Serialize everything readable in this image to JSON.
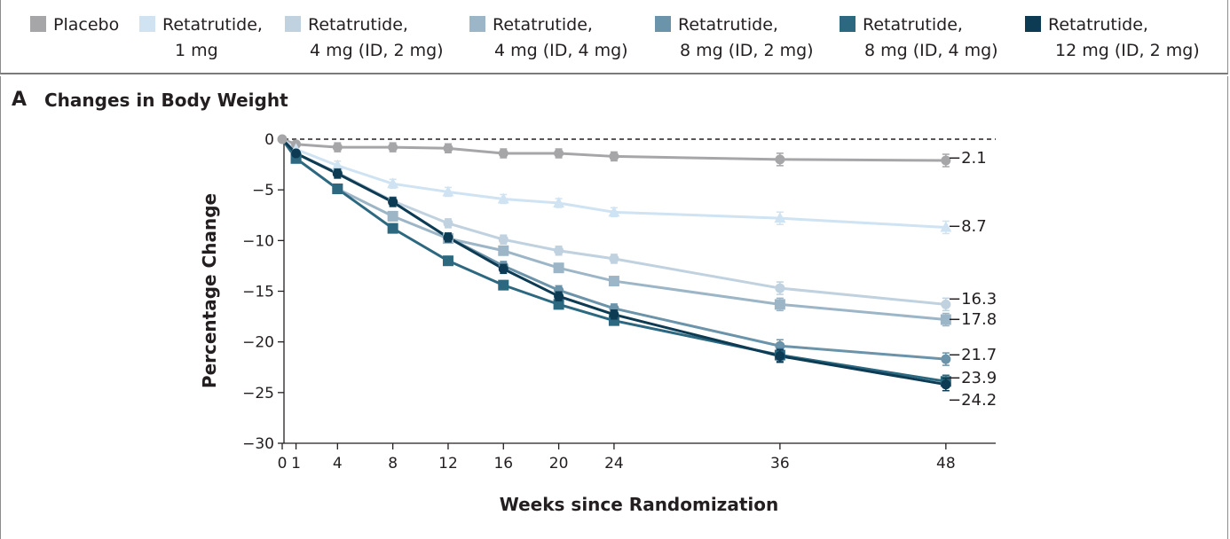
{
  "panel": {
    "letter": "A",
    "title": "Changes in Body Weight"
  },
  "legend": [
    {
      "line1": "Placebo",
      "line2": "",
      "color": "#a6a6a9"
    },
    {
      "line1": "Retatrutide,",
      "line2": "1 mg",
      "color": "#cfe3f3"
    },
    {
      "line1": "Retatrutide,",
      "line2": "4 mg (ID, 2 mg)",
      "color": "#c0d1df"
    },
    {
      "line1": "Retatrutide,",
      "line2": "4 mg (ID, 4 mg)",
      "color": "#9cb6c7"
    },
    {
      "line1": "Retatrutide,",
      "line2": "8 mg (ID, 2 mg)",
      "color": "#6b93a9"
    },
    {
      "line1": "Retatrutide,",
      "line2": "8 mg (ID, 4 mg)",
      "color": "#2c6880"
    },
    {
      "line1": "Retatrutide,",
      "line2": " 12 mg (ID, 2 mg)",
      "color": "#0d3b53"
    }
  ],
  "chart_data": {
    "type": "line",
    "xlabel": "Weeks since Randomization",
    "ylabel": "Percentage Change",
    "xlim": [
      0,
      53
    ],
    "ylim": [
      -30,
      0
    ],
    "xticks": [
      0,
      1,
      4,
      8,
      12,
      16,
      20,
      24,
      36,
      48
    ],
    "xtick_labels": [
      "0",
      "1",
      "4",
      "8",
      "12",
      "16",
      "20",
      "24",
      "36",
      "48"
    ],
    "yticks": [
      0,
      -5,
      -10,
      -15,
      -20,
      -25,
      -30
    ],
    "ytick_labels": [
      "0",
      "−5",
      "−10",
      "−15",
      "−20",
      "−25",
      "−30"
    ],
    "reference_line": 0,
    "x": [
      0,
      1,
      4,
      8,
      12,
      16,
      20,
      24,
      36,
      48
    ],
    "series": [
      {
        "name": "Placebo",
        "color": "#a6a6a9",
        "marker": "circle",
        "values": [
          0,
          -0.5,
          -0.8,
          -0.8,
          -0.9,
          -1.4,
          -1.4,
          -1.7,
          -2.0,
          -2.1
        ],
        "end_label": "−2.1"
      },
      {
        "name": "Retatrutide, 1 mg",
        "color": "#cfe3f3",
        "marker": "triangle",
        "values": [
          0,
          -1.0,
          -2.6,
          -4.4,
          -5.2,
          -5.9,
          -6.3,
          -7.2,
          -7.8,
          -8.7
        ],
        "end_label": "−8.7"
      },
      {
        "name": "Retatrutide, 4 mg (ID, 2 mg)",
        "color": "#c0d1df",
        "marker": "circle",
        "values": [
          0,
          -1.4,
          -3.3,
          -6.1,
          -8.3,
          -9.9,
          -11.0,
          -11.8,
          -14.7,
          -16.3
        ],
        "end_label": "−16.3"
      },
      {
        "name": "Retatrutide, 4 mg (ID, 4 mg)",
        "color": "#9cb6c7",
        "marker": "square",
        "values": [
          0,
          -1.9,
          -4.9,
          -7.6,
          -9.8,
          -11.0,
          -12.7,
          -14.0,
          -16.3,
          -17.8
        ],
        "end_label": "−17.8"
      },
      {
        "name": "Retatrutide, 8 mg (ID, 2 mg)",
        "color": "#6b93a9",
        "marker": "circle",
        "values": [
          0,
          -1.4,
          -3.4,
          -6.2,
          -9.7,
          -12.5,
          -14.9,
          -16.7,
          -20.4,
          -21.7
        ],
        "end_label": "−21.7"
      },
      {
        "name": "Retatrutide, 8 mg (ID, 4 mg)",
        "color": "#2c6880",
        "marker": "square",
        "values": [
          0,
          -1.9,
          -4.9,
          -8.8,
          -12.0,
          -14.4,
          -16.3,
          -17.9,
          -21.3,
          -23.9
        ],
        "end_label": "−23.9"
      },
      {
        "name": "Retatrutide, 12 mg (ID, 2 mg)",
        "color": "#0d3b53",
        "marker": "circle",
        "values": [
          0,
          -1.4,
          -3.4,
          -6.2,
          -9.7,
          -12.8,
          -15.5,
          -17.3,
          -21.4,
          -24.2
        ],
        "end_label": "−24.2"
      }
    ]
  }
}
